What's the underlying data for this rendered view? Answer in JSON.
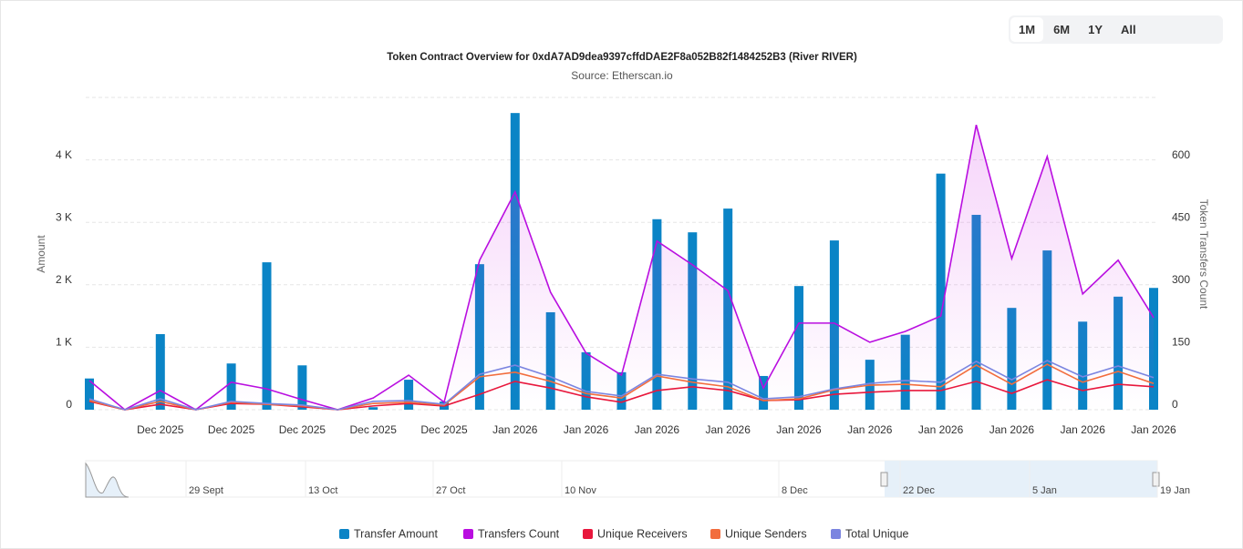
{
  "chart_data": {
    "type": "bar",
    "title": "Token Contract Overview for 0xdA7AD9dea9397cffdDAE2F8a052B82f1484252B3 (River RIVER)",
    "subtitle": "Source: Etherscan.io",
    "buttons": [
      "1M",
      "6M",
      "1Y",
      "All"
    ],
    "y_label": "Amount",
    "y2_label": "Token Transfers Count",
    "categories": [
      null,
      null,
      "Dec 2025",
      null,
      "Dec 2025",
      null,
      "Dec 2025",
      null,
      "Dec 2025",
      null,
      "Dec 2025",
      null,
      "Jan 2026",
      null,
      "Jan 2026",
      null,
      "Jan 2026",
      null,
      "Jan 2026",
      null,
      "Jan 2026",
      null,
      "Jan 2026",
      null,
      "Jan 2026",
      null,
      "Jan 2026",
      null,
      "Jan 2026",
      null,
      "Jan 2026"
    ],
    "ylim": [
      0,
      5000
    ],
    "yticks": [
      0,
      {
        "value": 1000,
        "label": "1 K"
      },
      {
        "value": 2000,
        "label": "2 K"
      },
      {
        "value": 3000,
        "label": "3 K"
      },
      {
        "value": 4000,
        "label": "4 K"
      }
    ],
    "y2lim": [
      0,
      750
    ],
    "y2ticks": [
      0,
      150,
      300,
      450,
      600
    ],
    "grid": true,
    "legend": "bottom",
    "series": [
      {
        "name": "Transfer Amount",
        "type": "bar",
        "color": "#0a84c6",
        "values": [
          500,
          0,
          1210,
          20,
          740,
          2360,
          710,
          0,
          40,
          480,
          130,
          2330,
          4750,
          1560,
          920,
          600,
          3050,
          2840,
          3220,
          540,
          1980,
          2710,
          800,
          1200,
          3780,
          3120,
          1630,
          2550,
          1410,
          1810,
          1950
        ]
      },
      {
        "name": "Transfers Count",
        "type": "line",
        "axis": "y2",
        "color": "#b90ee0",
        "area": true,
        "values": [
          70,
          0,
          46,
          0,
          66,
          50,
          24,
          0,
          28,
          83,
          18,
          359,
          523,
          282,
          136,
          83,
          405,
          348,
          286,
          52,
          208,
          208,
          162,
          188,
          225,
          684,
          363,
          608,
          278,
          359,
          221
        ]
      },
      {
        "name": "Unique Receivers",
        "type": "line",
        "axis": "y2",
        "color": "#e8173c",
        "values": [
          20,
          0,
          13,
          0,
          15,
          13,
          7,
          0,
          9,
          15,
          9,
          37,
          68,
          52,
          31,
          18,
          46,
          55,
          46,
          22,
          24,
          37,
          42,
          46,
          46,
          68,
          39,
          72,
          46,
          61,
          55
        ]
      },
      {
        "name": "Unique Senders",
        "type": "line",
        "axis": "y2",
        "color": "#f26d3d",
        "values": [
          22,
          0,
          20,
          0,
          18,
          13,
          9,
          0,
          15,
          18,
          11,
          79,
          90,
          68,
          39,
          28,
          81,
          66,
          55,
          22,
          26,
          48,
          59,
          61,
          55,
          107,
          61,
          109,
          66,
          92,
          63
        ]
      },
      {
        "name": "Total Unique",
        "type": "line",
        "axis": "y2",
        "color": "#7b85e0",
        "values": [
          26,
          0,
          26,
          0,
          20,
          15,
          11,
          0,
          20,
          22,
          13,
          85,
          107,
          79,
          44,
          33,
          85,
          74,
          66,
          26,
          31,
          50,
          63,
          70,
          66,
          116,
          72,
          118,
          79,
          105,
          77
        ]
      }
    ],
    "navigator": {
      "labels": [
        "29 Sept",
        "13 Oct",
        "27 Oct",
        "10 Nov",
        "8 Dec",
        "22 Dec",
        "5 Jan",
        "19 Jan"
      ]
    }
  }
}
